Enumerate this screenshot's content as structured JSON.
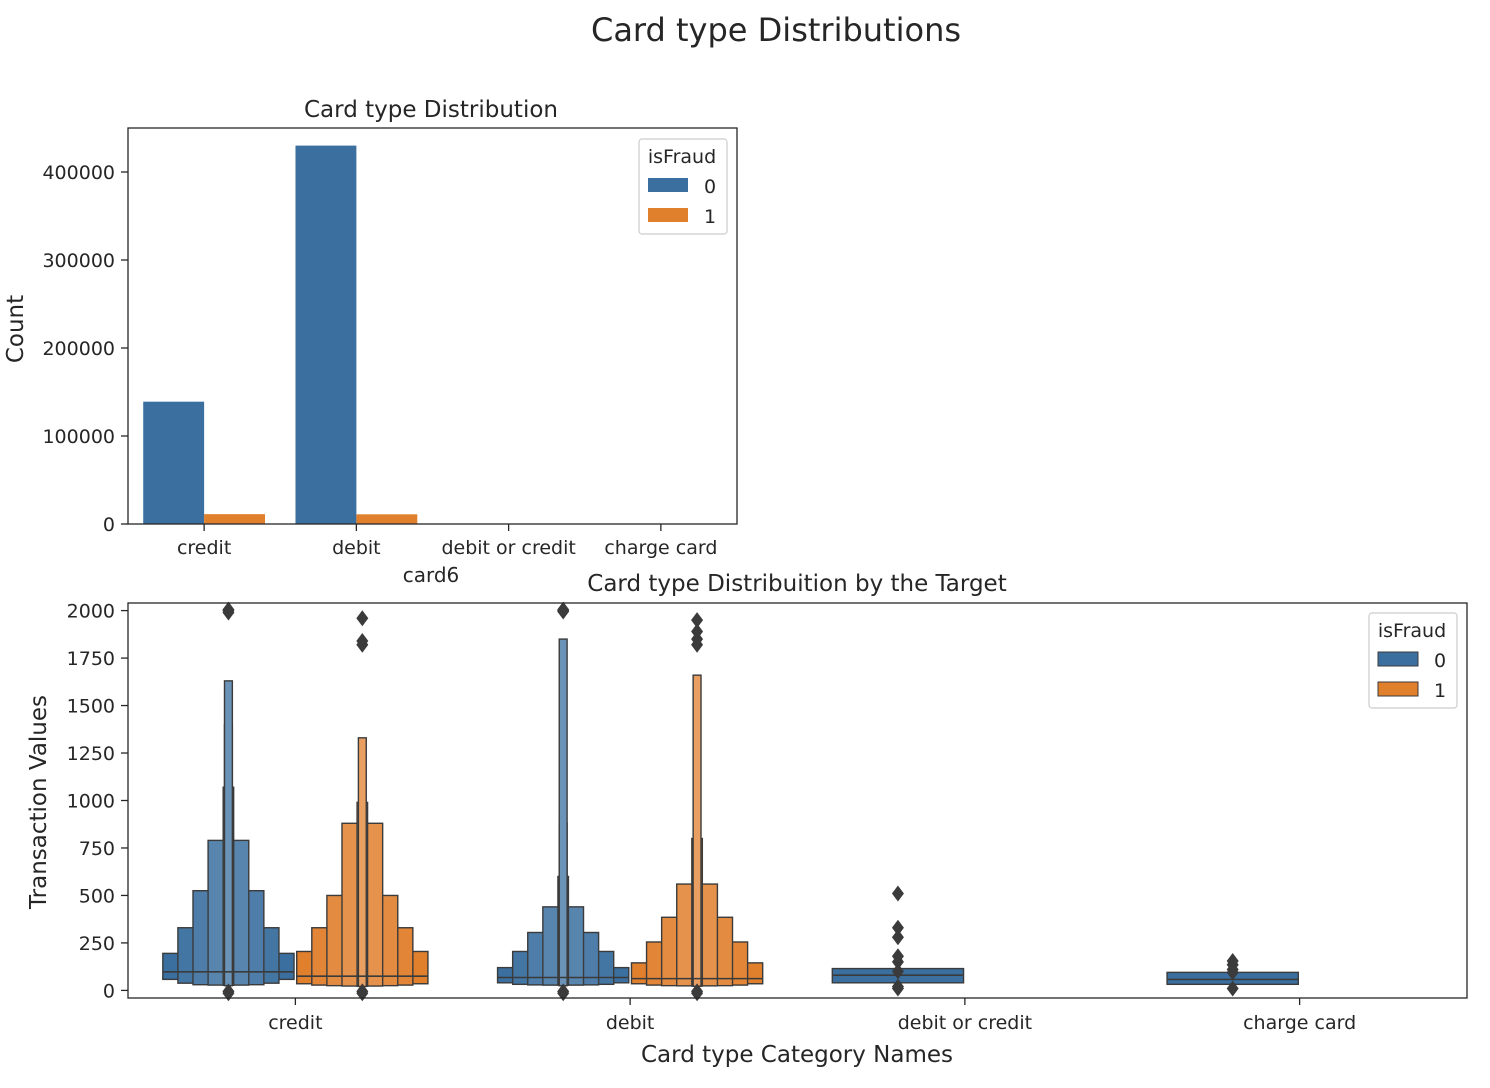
{
  "figure": {
    "suptitle": "Card type Distributions"
  },
  "colors": {
    "fraud_0": "#3a6f9f",
    "fraud_1": "#e07f2c",
    "edge": "#3b3b3b",
    "axis": "#262626"
  },
  "chart_data": [
    {
      "type": "bar",
      "title": "Card type Distribution",
      "xlabel": "card6",
      "ylabel": "Count",
      "categories": [
        "credit",
        "debit",
        "debit or credit",
        "charge card"
      ],
      "ylim": [
        0,
        450000
      ],
      "yticks": [
        0,
        100000,
        200000,
        300000,
        400000
      ],
      "series": [
        {
          "name": "0",
          "values": [
            139000,
            430000,
            30,
            15
          ]
        },
        {
          "name": "1",
          "values": [
            11200,
            11000,
            0,
            0
          ]
        }
      ],
      "legend": {
        "title": "isFraud",
        "placement": "top-right"
      },
      "grid": false
    },
    {
      "type": "boxen",
      "title": "Card type Distribuition by the Target",
      "xlabel": "Card type Category Names",
      "ylabel": "Transaction Values",
      "categories": [
        "credit",
        "debit",
        "debit or credit",
        "charge card"
      ],
      "ylim": [
        -40,
        2040
      ],
      "yticks": [
        0,
        250,
        500,
        750,
        1000,
        1250,
        1500,
        1750,
        2000
      ],
      "legend": {
        "title": "isFraud",
        "placement": "top-right"
      },
      "grid": false,
      "series": [
        {
          "name": "0",
          "groups": [
            {
              "category": "credit",
              "median": 98,
              "boxes": [
                [
                  58,
                  195
                ],
                [
                  38,
                  330
                ],
                [
                  30,
                  525
                ],
                [
                  28,
                  790
                ],
                [
                  27,
                  1070
                ],
                [
                  26,
                  1400
                ],
                [
                  25,
                  1630
                ]
              ],
              "outliers": [
                1990,
                2000,
                2005,
                -5,
                -15
              ]
            },
            {
              "category": "debit",
              "median": 68,
              "boxes": [
                [
                  40,
                  120
                ],
                [
                  32,
                  205
                ],
                [
                  29,
                  305
                ],
                [
                  28,
                  440
                ],
                [
                  27,
                  600
                ],
                [
                  26,
                  880
                ],
                [
                  25,
                  1850
                ]
              ],
              "outliers": [
                1995,
                2000,
                2005,
                -5,
                -15
              ]
            },
            {
              "category": "debit or credit",
              "median": 80,
              "boxes": [
                [
                  40,
                  115
                ]
              ],
              "outliers": [
                510,
                330,
                280,
                180,
                150,
                100,
                20,
                10
              ]
            },
            {
              "category": "charge card",
              "median": 58,
              "boxes": [
                [
                  32,
                  95
                ]
              ],
              "outliers": [
                155,
                135,
                110,
                95,
                10
              ]
            }
          ]
        },
        {
          "name": "1",
          "groups": [
            {
              "category": "credit",
              "median": 75,
              "boxes": [
                [
                  35,
                  205
                ],
                [
                  28,
                  330
                ],
                [
                  25,
                  500
                ],
                [
                  23,
                  880
                ],
                [
                  22,
                  990
                ],
                [
                  21,
                  1330
                ]
              ],
              "outliers": [
                1960,
                1840,
                1820,
                -5,
                -15
              ]
            },
            {
              "category": "debit",
              "median": 62,
              "boxes": [
                [
                  35,
                  145
                ],
                [
                  28,
                  255
                ],
                [
                  25,
                  385
                ],
                [
                  24,
                  560
                ],
                [
                  23,
                  800
                ],
                [
                  22,
                  1660
                ]
              ],
              "outliers": [
                1950,
                1890,
                1850,
                1820,
                -5,
                -15
              ]
            }
          ]
        }
      ]
    }
  ]
}
